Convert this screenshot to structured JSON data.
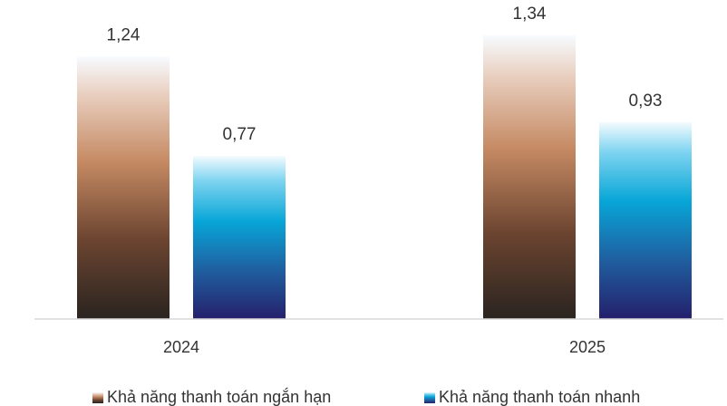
{
  "chart_data": {
    "type": "bar",
    "categories": [
      "2024",
      "2025"
    ],
    "series": [
      {
        "name": "Khả năng thanh toán ngắn hạn",
        "values": [
          1.24,
          1.34
        ],
        "labels": [
          "1,24",
          "1,34"
        ]
      },
      {
        "name": "Khả năng thanh toán nhanh",
        "values": [
          0.77,
          0.93
        ],
        "labels": [
          "0,77",
          "0,93"
        ]
      }
    ],
    "title": "",
    "xlabel": "",
    "ylabel": "",
    "ylim": [
      0,
      1.4
    ],
    "grid": false,
    "legend": "bottom",
    "colors": {
      "series_0": [
        "#2a2420",
        "#6b4430",
        "#c58a63",
        "#e8cdbd",
        "#f7fbff"
      ],
      "series_1": [
        "#25206b",
        "#1f5fa0",
        "#08a6d8",
        "#7fd4f0",
        "#f4fbff"
      ],
      "axis": "#d9d9d9"
    }
  }
}
